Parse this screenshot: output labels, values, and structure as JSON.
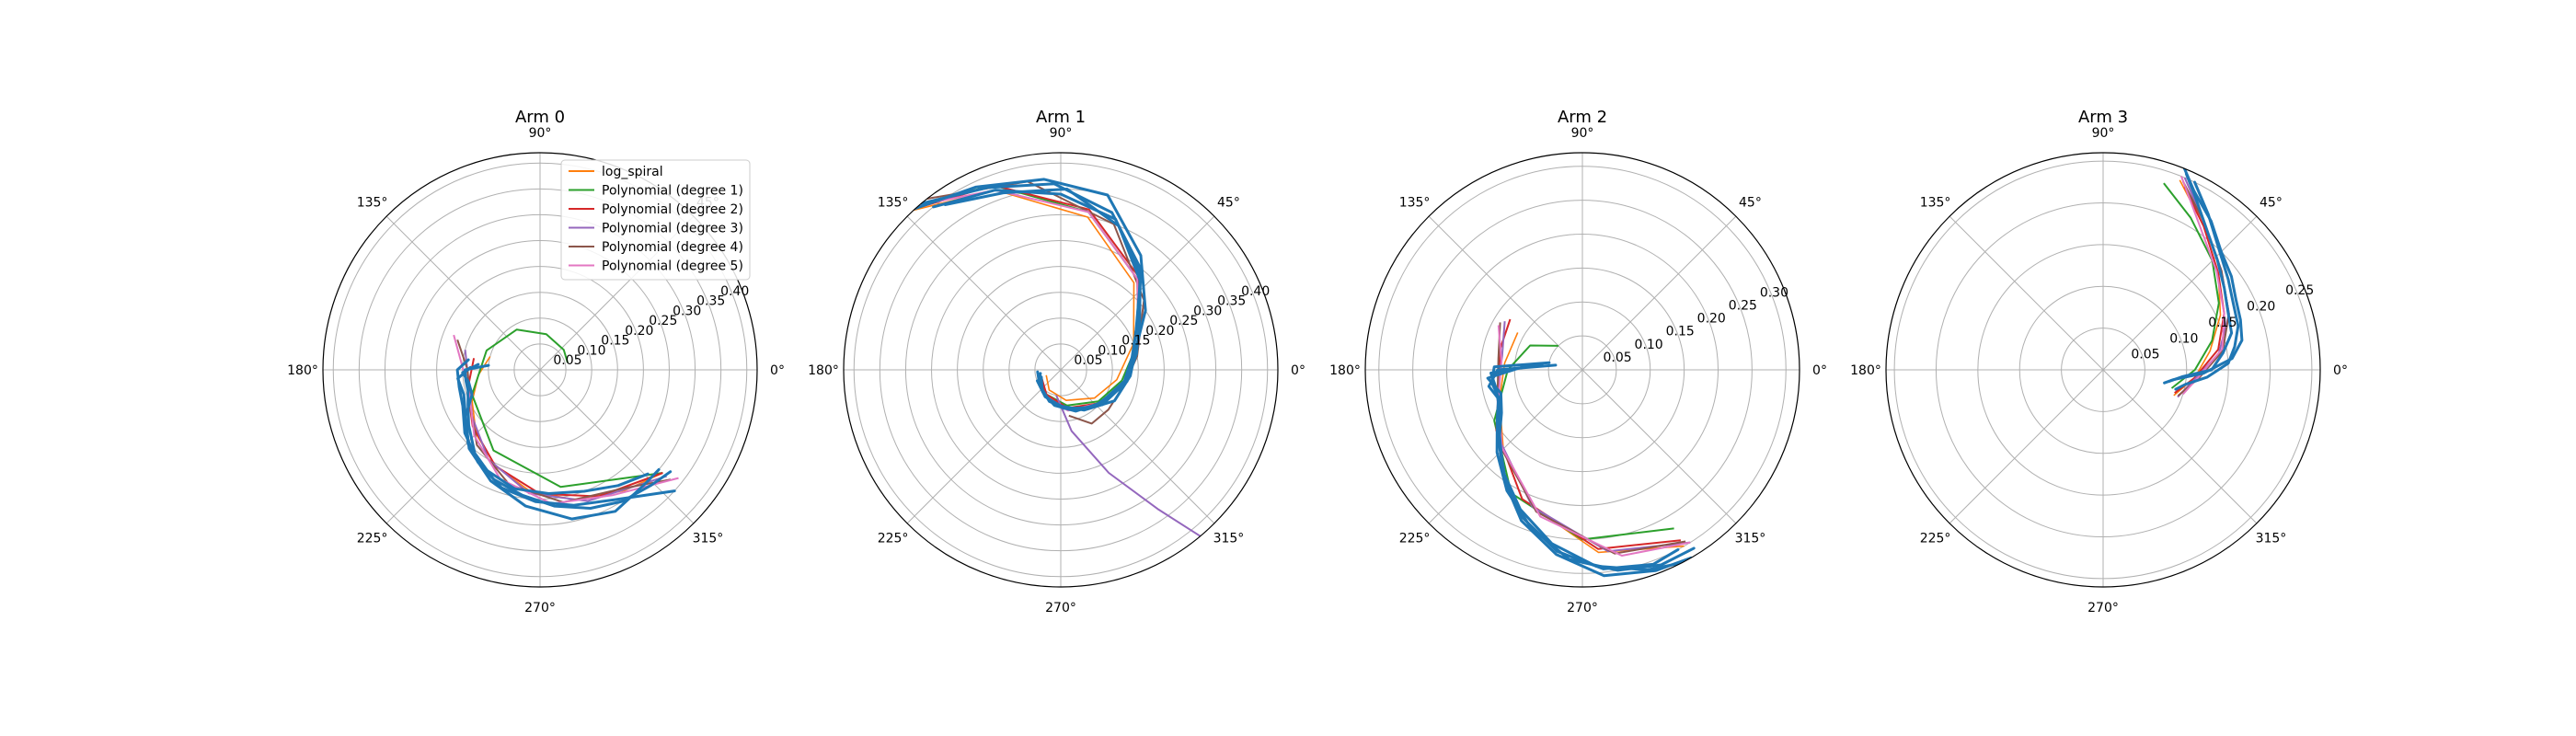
{
  "figure": {
    "legend_location": "upper-right of Arm 0 panel"
  },
  "chart_data": [
    {
      "type": "polar-line",
      "title": "Arm 0",
      "theta_ticks": [
        "0°",
        "45°",
        "90°",
        "135°",
        "180°",
        "225°",
        "270°",
        "315°"
      ],
      "r_ticks": [
        "0.05",
        "0.10",
        "0.15",
        "0.20",
        "0.25",
        "0.30",
        "0.35",
        "0.40"
      ],
      "r_tick_values": [
        0.05,
        0.1,
        0.15,
        0.2,
        0.25,
        0.3,
        0.35,
        0.4
      ],
      "rmax": 0.42,
      "data_tracks": [
        {
          "theta": [
            175,
            180,
            188,
            196,
            206,
            218,
            232,
            247,
            262,
            276,
            290,
            302,
            314,
            322
          ],
          "r": [
            0.1,
            0.145,
            0.145,
            0.145,
            0.155,
            0.175,
            0.205,
            0.23,
            0.245,
            0.265,
            0.285,
            0.3,
            0.31,
            0.32
          ]
        },
        {
          "theta": [
            175,
            182,
            190,
            200,
            212,
            226,
            242,
            258,
            274,
            290,
            304,
            316
          ],
          "r": [
            0.12,
            0.15,
            0.14,
            0.14,
            0.17,
            0.2,
            0.22,
            0.235,
            0.24,
            0.25,
            0.27,
            0.29
          ]
        },
        {
          "theta": [
            178,
            186,
            198,
            212,
            228,
            246,
            264,
            282,
            298,
            312,
            320
          ],
          "r": [
            0.135,
            0.16,
            0.155,
            0.17,
            0.205,
            0.235,
            0.265,
            0.295,
            0.31,
            0.3,
            0.3
          ]
        },
        {
          "theta": [
            172,
            180,
            192,
            205,
            220,
            236,
            252,
            268,
            284,
            300,
            318
          ],
          "r": [
            0.14,
            0.16,
            0.16,
            0.165,
            0.19,
            0.215,
            0.24,
            0.255,
            0.27,
            0.29,
            0.35
          ]
        }
      ],
      "fits": [
        {
          "name": "log_spiral",
          "theta": [
            165,
            185,
            205,
            225,
            245,
            265,
            285,
            305,
            320
          ],
          "r": [
            0.1,
            0.12,
            0.145,
            0.175,
            0.205,
            0.235,
            0.26,
            0.285,
            0.31
          ]
        },
        {
          "name": "Polynomial (degree 1)",
          "theta": [
            15,
            40,
            80,
            120,
            160,
            200,
            240,
            280,
            320
          ],
          "r": [
            0.055,
            0.06,
            0.07,
            0.09,
            0.11,
            0.14,
            0.18,
            0.23,
            0.31
          ]
        },
        {
          "name": "Polynomial (degree 2)",
          "theta": [
            170,
            195,
            220,
            245,
            270,
            295,
            320
          ],
          "r": [
            0.13,
            0.145,
            0.17,
            0.205,
            0.24,
            0.27,
            0.31
          ]
        },
        {
          "name": "Polynomial (degree 3)",
          "theta": [
            165,
            190,
            215,
            240,
            265,
            290,
            320
          ],
          "r": [
            0.15,
            0.14,
            0.16,
            0.2,
            0.24,
            0.27,
            0.32
          ]
        },
        {
          "name": "Polynomial (degree 4)",
          "theta": [
            160,
            180,
            205,
            230,
            255,
            280,
            305,
            320
          ],
          "r": [
            0.17,
            0.14,
            0.15,
            0.19,
            0.23,
            0.26,
            0.28,
            0.33
          ]
        },
        {
          "name": "Polynomial (degree 5)",
          "theta": [
            158,
            178,
            200,
            225,
            250,
            275,
            300,
            322
          ],
          "r": [
            0.18,
            0.15,
            0.145,
            0.18,
            0.225,
            0.26,
            0.28,
            0.34
          ]
        }
      ]
    },
    {
      "type": "polar-line",
      "title": "Arm 1",
      "theta_ticks": [
        "0°",
        "45°",
        "90°",
        "135°",
        "180°",
        "225°",
        "270°",
        "315°"
      ],
      "r_ticks": [
        "0.05",
        "0.10",
        "0.15",
        "0.20",
        "0.25",
        "0.30",
        "0.35",
        "0.40"
      ],
      "r_tick_values": [
        0.05,
        0.1,
        0.15,
        0.2,
        0.25,
        0.3,
        0.35,
        0.4
      ],
      "rmax": 0.42,
      "data_tracks": [
        {
          "theta": [
            190,
            210,
            240,
            270,
            300,
            330,
            355,
            15,
            35,
            55,
            75,
            95,
            115,
            135
          ],
          "r": [
            0.04,
            0.05,
            0.06,
            0.07,
            0.09,
            0.12,
            0.135,
            0.15,
            0.2,
            0.27,
            0.35,
            0.37,
            0.39,
            0.43
          ]
        },
        {
          "theta": [
            200,
            230,
            260,
            290,
            320,
            350,
            10,
            30,
            50,
            70,
            90,
            110,
            128
          ],
          "r": [
            0.04,
            0.055,
            0.07,
            0.085,
            0.1,
            0.125,
            0.14,
            0.17,
            0.24,
            0.31,
            0.34,
            0.37,
            0.4
          ]
        },
        {
          "theta": [
            185,
            215,
            250,
            285,
            320,
            350,
            12,
            32,
            52,
            72,
            92,
            112,
            130
          ],
          "r": [
            0.045,
            0.05,
            0.065,
            0.08,
            0.105,
            0.13,
            0.15,
            0.18,
            0.25,
            0.32,
            0.36,
            0.38,
            0.42
          ]
        },
        {
          "theta": [
            205,
            240,
            275,
            310,
            345,
            8,
            28,
            48,
            68,
            88,
            108,
            125
          ],
          "r": [
            0.05,
            0.06,
            0.075,
            0.095,
            0.125,
            0.14,
            0.165,
            0.23,
            0.3,
            0.35,
            0.36,
            0.39
          ]
        }
      ],
      "fits": [
        {
          "name": "log_spiral",
          "theta": [
            200,
            240,
            280,
            320,
            350,
            20,
            50,
            80,
            110,
            135
          ],
          "r": [
            0.03,
            0.045,
            0.06,
            0.085,
            0.11,
            0.15,
            0.22,
            0.3,
            0.37,
            0.43
          ]
        },
        {
          "name": "Polynomial (degree 1)",
          "theta": [
            200,
            240,
            280,
            320,
            350,
            20,
            50,
            80,
            110,
            130
          ],
          "r": [
            0.045,
            0.055,
            0.07,
            0.095,
            0.12,
            0.16,
            0.23,
            0.31,
            0.38,
            0.42
          ]
        },
        {
          "name": "Polynomial (degree 2)",
          "theta": [
            200,
            240,
            280,
            320,
            350,
            20,
            50,
            80,
            110,
            132
          ],
          "r": [
            0.04,
            0.055,
            0.075,
            0.1,
            0.125,
            0.16,
            0.235,
            0.315,
            0.38,
            0.42
          ]
        },
        {
          "name": "Polynomial (degree 3)",
          "theta": [
            260,
            280,
            295,
            305,
            310,
            313
          ],
          "r": [
            0.05,
            0.12,
            0.22,
            0.33,
            0.42,
            0.5
          ]
        },
        {
          "name": "Polynomial (degree 4)",
          "theta": [
            280,
            300,
            320,
            345,
            10,
            40,
            70,
            100,
            128
          ],
          "r": [
            0.09,
            0.12,
            0.12,
            0.125,
            0.15,
            0.21,
            0.3,
            0.37,
            0.42
          ]
        },
        {
          "name": "Polynomial (degree 5)",
          "theta": [
            200,
            240,
            280,
            320,
            350,
            20,
            50,
            80,
            110,
            128
          ],
          "r": [
            0.045,
            0.06,
            0.08,
            0.1,
            0.125,
            0.16,
            0.23,
            0.31,
            0.37,
            0.41
          ]
        }
      ]
    },
    {
      "type": "polar-line",
      "title": "Arm 2",
      "theta_ticks": [
        "0°",
        "45°",
        "90°",
        "135°",
        "180°",
        "225°",
        "270°",
        "315°"
      ],
      "r_ticks": [
        "0.05",
        "0.10",
        "0.15",
        "0.20",
        "0.25",
        "0.30"
      ],
      "r_tick_values": [
        0.05,
        0.1,
        0.15,
        0.2,
        0.25,
        0.3
      ],
      "rmax": 0.32,
      "data_tracks": [
        {
          "theta": [
            170,
            180,
            190,
            200,
            210,
            222,
            235,
            248,
            262,
            276,
            290,
            300
          ],
          "r": [
            0.04,
            0.125,
            0.14,
            0.13,
            0.14,
            0.165,
            0.2,
            0.24,
            0.275,
            0.305,
            0.315,
            0.32
          ]
        },
        {
          "theta": [
            168,
            178,
            188,
            198,
            210,
            224,
            238,
            252,
            266,
            280,
            292,
            302
          ],
          "r": [
            0.05,
            0.13,
            0.135,
            0.13,
            0.145,
            0.175,
            0.21,
            0.245,
            0.28,
            0.3,
            0.31,
            0.31
          ]
        },
        {
          "theta": [
            172,
            182,
            192,
            205,
            218,
            232,
            246,
            260,
            274,
            288,
            300
          ],
          "r": [
            0.06,
            0.135,
            0.13,
            0.135,
            0.155,
            0.19,
            0.225,
            0.26,
            0.29,
            0.31,
            0.325
          ]
        },
        {
          "theta": [
            175,
            185,
            196,
            208,
            220,
            234,
            248,
            262,
            276,
            290,
            298
          ],
          "r": [
            0.08,
            0.14,
            0.125,
            0.135,
            0.16,
            0.195,
            0.235,
            0.27,
            0.295,
            0.305,
            0.3
          ]
        }
      ],
      "fits": [
        {
          "name": "log_spiral",
          "theta": [
            150,
            175,
            200,
            225,
            250,
            275,
            300
          ],
          "r": [
            0.11,
            0.115,
            0.13,
            0.165,
            0.215,
            0.27,
            0.3
          ]
        },
        {
          "name": "Polynomial (degree 1)",
          "theta": [
            135,
            155,
            180,
            210,
            240,
            270,
            300
          ],
          "r": [
            0.05,
            0.085,
            0.11,
            0.15,
            0.21,
            0.25,
            0.27
          ]
        },
        {
          "name": "Polynomial (degree 2)",
          "theta": [
            145,
            165,
            190,
            215,
            245,
            275,
            300
          ],
          "r": [
            0.13,
            0.125,
            0.125,
            0.155,
            0.21,
            0.265,
            0.29
          ]
        },
        {
          "name": "Polynomial (degree 3)",
          "theta": [
            148,
            170,
            195,
            220,
            250,
            278,
            302
          ],
          "r": [
            0.135,
            0.12,
            0.13,
            0.16,
            0.215,
            0.27,
            0.3
          ]
        },
        {
          "name": "Polynomial (degree 4)",
          "theta": [
            150,
            172,
            196,
            222,
            252,
            280,
            301
          ],
          "r": [
            0.14,
            0.125,
            0.13,
            0.165,
            0.22,
            0.275,
            0.295
          ]
        },
        {
          "name": "Polynomial (degree 5)",
          "theta": [
            152,
            174,
            198,
            224,
            254,
            282,
            302
          ],
          "r": [
            0.14,
            0.12,
            0.13,
            0.165,
            0.225,
            0.28,
            0.3
          ]
        }
      ]
    },
    {
      "type": "polar-line",
      "title": "Arm 3",
      "theta_ticks": [
        "0°",
        "45°",
        "90°",
        "135°",
        "180°",
        "225°",
        "270°",
        "315°"
      ],
      "r_ticks": [
        "0.05",
        "0.10",
        "0.15",
        "0.20",
        "0.25"
      ],
      "r_tick_values": [
        0.05,
        0.1,
        0.15,
        0.2,
        0.25
      ],
      "rmax": 0.26,
      "data_tracks": [
        {
          "theta": [
            348,
            352,
            358,
            5,
            12,
            20,
            28,
            36,
            45,
            54,
            63,
            68
          ],
          "r": [
            0.075,
            0.085,
            0.12,
            0.155,
            0.17,
            0.175,
            0.18,
            0.19,
            0.2,
            0.22,
            0.24,
            0.26
          ]
        },
        {
          "theta": [
            345,
            350,
            356,
            3,
            10,
            18,
            27,
            36,
            46,
            56,
            64
          ],
          "r": [
            0.09,
            0.1,
            0.125,
            0.15,
            0.16,
            0.17,
            0.175,
            0.185,
            0.2,
            0.225,
            0.25
          ]
        },
        {
          "theta": [
            350,
            355,
            0,
            8,
            16,
            25,
            34,
            44,
            54,
            62,
            67
          ],
          "r": [
            0.08,
            0.095,
            0.13,
            0.145,
            0.16,
            0.165,
            0.175,
            0.19,
            0.21,
            0.235,
            0.255
          ]
        }
      ],
      "fits": [
        {
          "name": "log_spiral",
          "theta": [
            340,
            355,
            10,
            25,
            40,
            55,
            68
          ],
          "r": [
            0.09,
            0.11,
            0.13,
            0.155,
            0.18,
            0.21,
            0.245
          ]
        },
        {
          "name": "Polynomial (degree 1)",
          "theta": [
            345,
            0,
            15,
            30,
            45,
            60,
            72
          ],
          "r": [
            0.085,
            0.11,
            0.135,
            0.16,
            0.185,
            0.21,
            0.235
          ]
        },
        {
          "name": "Polynomial (degree 2)",
          "theta": [
            342,
            355,
            10,
            25,
            40,
            55,
            66
          ],
          "r": [
            0.09,
            0.11,
            0.14,
            0.16,
            0.18,
            0.21,
            0.24
          ]
        },
        {
          "name": "Polynomial (degree 3)",
          "theta": [
            340,
            354,
            8,
            24,
            40,
            56,
            67
          ],
          "r": [
            0.095,
            0.11,
            0.14,
            0.165,
            0.185,
            0.215,
            0.25
          ]
        },
        {
          "name": "Polynomial (degree 4)",
          "theta": [
            341,
            355,
            9,
            24,
            40,
            56,
            67
          ],
          "r": [
            0.095,
            0.115,
            0.145,
            0.165,
            0.185,
            0.215,
            0.245
          ]
        },
        {
          "name": "Polynomial (degree 5)",
          "theta": [
            343,
            356,
            10,
            25,
            41,
            57,
            68
          ],
          "r": [
            0.1,
            0.115,
            0.145,
            0.16,
            0.18,
            0.21,
            0.25
          ]
        }
      ]
    }
  ],
  "legend": {
    "entries": [
      {
        "label": "log_spiral",
        "color": "#ff7f0e"
      },
      {
        "label": "Polynomial (degree 1)",
        "color": "#2ca02c"
      },
      {
        "label": "Polynomial (degree 2)",
        "color": "#d62728"
      },
      {
        "label": "Polynomial (degree 3)",
        "color": "#9467bd"
      },
      {
        "label": "Polynomial (degree 4)",
        "color": "#8c564b"
      },
      {
        "label": "Polynomial (degree 5)",
        "color": "#e377c2"
      }
    ]
  },
  "colors": {
    "data_track": "#1f77b4",
    "grid": "#b0b0b0",
    "outline": "#000000"
  }
}
